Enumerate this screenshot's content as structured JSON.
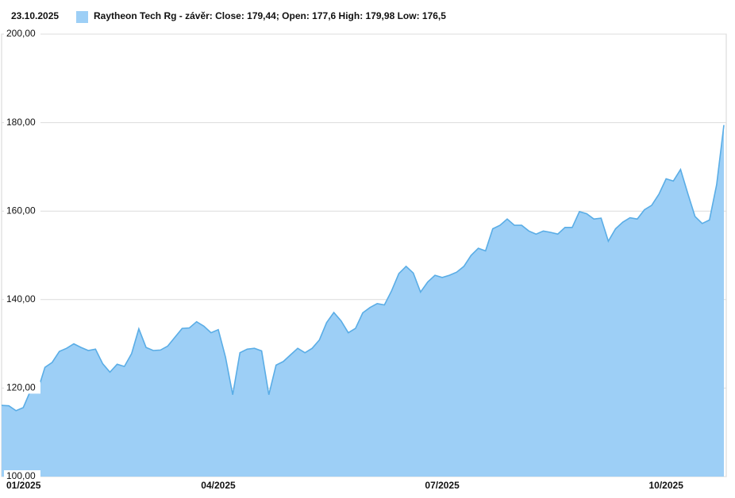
{
  "chart_data": {
    "type": "area",
    "date": "23.10.2025",
    "categories": [
      "01/2025",
      null,
      null,
      null,
      null,
      null,
      null,
      null,
      null,
      null,
      null,
      null,
      null,
      null,
      null,
      null,
      null,
      null,
      null,
      null,
      null,
      null,
      null,
      null,
      null,
      null,
      null,
      null,
      null,
      null,
      "04/2025",
      null,
      null,
      null,
      null,
      null,
      null,
      null,
      null,
      null,
      null,
      null,
      null,
      null,
      null,
      null,
      null,
      null,
      null,
      null,
      null,
      null,
      null,
      null,
      null,
      null,
      null,
      null,
      null,
      null,
      null,
      "07/2025",
      null,
      null,
      null,
      null,
      null,
      null,
      null,
      null,
      null,
      null,
      null,
      null,
      null,
      null,
      null,
      null,
      null,
      null,
      null,
      null,
      null,
      null,
      null,
      null,
      null,
      null,
      null,
      null,
      null,
      null,
      "10/2025",
      null,
      null,
      null,
      null,
      null,
      null,
      null,
      null
    ],
    "series": [
      {
        "name": "Raytheon Tech Rg - závěr: Close: 179,44; Open: 177,6 High: 179,98 Low: 176,5",
        "color": "#9dcff6",
        "line_color": "#5aade6",
        "values": [
          116.1,
          116.0,
          114.9,
          115.6,
          119.4,
          119.4,
          124.7,
          125.8,
          128.3,
          129.0,
          130.0,
          129.2,
          128.5,
          128.8,
          125.5,
          123.6,
          125.4,
          124.9,
          127.8,
          133.4,
          129.2,
          128.5,
          128.6,
          129.5,
          131.5,
          133.5,
          133.6,
          135.0,
          134.0,
          132.5,
          133.2,
          127.0,
          118.5,
          128.0,
          128.8,
          129.0,
          128.4,
          118.5,
          125.2,
          126.0,
          127.5,
          129.0,
          128.0,
          129.0,
          130.9,
          134.8,
          137.1,
          135.2,
          132.5,
          133.5,
          137.0,
          138.2,
          139.1,
          138.8,
          142.0,
          145.9,
          147.5,
          146.0,
          141.7,
          144.0,
          145.5,
          145.0,
          145.5,
          146.2,
          147.5,
          150.0,
          151.6,
          151.0,
          156.0,
          156.8,
          158.2,
          156.8,
          156.8,
          155.5,
          154.8,
          155.5,
          155.2,
          154.8,
          156.3,
          156.3,
          159.9,
          159.4,
          158.2,
          158.4,
          153.2,
          156.0,
          157.5,
          158.5,
          158.2,
          160.3,
          161.3,
          163.8,
          167.3,
          166.8,
          169.4,
          164.0,
          158.8,
          157.2,
          158.0,
          166.0,
          179.44
        ]
      }
    ],
    "ylim": [
      100,
      200
    ],
    "yticks": [
      {
        "value": 100,
        "label": "100,00"
      },
      {
        "value": 120,
        "label": "120,00"
      },
      {
        "value": 140,
        "label": "140,00"
      },
      {
        "value": 160,
        "label": "160,00"
      },
      {
        "value": 180,
        "label": "180,00"
      },
      {
        "value": 200,
        "label": "200,00"
      }
    ],
    "grid": true
  }
}
